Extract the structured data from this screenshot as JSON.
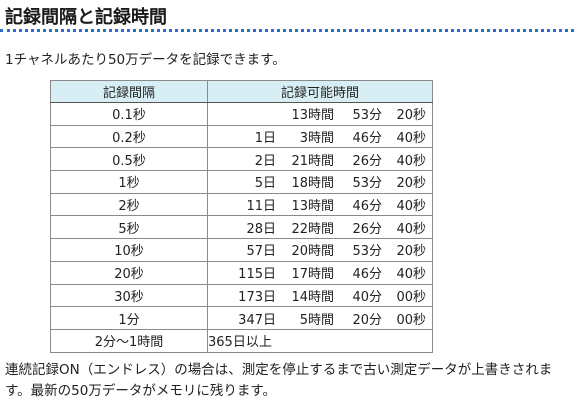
{
  "heading": "記録間隔と記録時間",
  "intro": "1チャネルあたり50万データを記録できます。",
  "table": {
    "headers": [
      "記録間隔",
      "記録可能時間"
    ],
    "rows": [
      {
        "interval": "0.1秒",
        "day": "",
        "hour": "13時間",
        "min": "53分",
        "sec": "20秒"
      },
      {
        "interval": "0.2秒",
        "day": "1日",
        "hour": "3時間",
        "min": "46分",
        "sec": "40秒"
      },
      {
        "interval": "0.5秒",
        "day": "2日",
        "hour": "21時間",
        "min": "26分",
        "sec": "40秒"
      },
      {
        "interval": "1秒",
        "day": "5日",
        "hour": "18時間",
        "min": "53分",
        "sec": "20秒"
      },
      {
        "interval": "2秒",
        "day": "11日",
        "hour": "13時間",
        "min": "46分",
        "sec": "40秒"
      },
      {
        "interval": "5秒",
        "day": "28日",
        "hour": "22時間",
        "min": "26分",
        "sec": "40秒"
      },
      {
        "interval": "10秒",
        "day": "57日",
        "hour": "20時間",
        "min": "53分",
        "sec": "20秒"
      },
      {
        "interval": "20秒",
        "day": "115日",
        "hour": "17時間",
        "min": "46分",
        "sec": "40秒"
      },
      {
        "interval": "30秒",
        "day": "173日",
        "hour": "14時間",
        "min": "40分",
        "sec": "00秒"
      },
      {
        "interval": "1分",
        "day": "347日",
        "hour": "5時間",
        "min": "20分",
        "sec": "00秒"
      }
    ],
    "last_row": {
      "interval": "2分～1時間",
      "duration": "365日以上"
    }
  },
  "note": "連続記録ON（エンドレス）の場合は、測定を停止するまで古い測定データが上書きされます。最新の50万データがメモリに残ります。"
}
